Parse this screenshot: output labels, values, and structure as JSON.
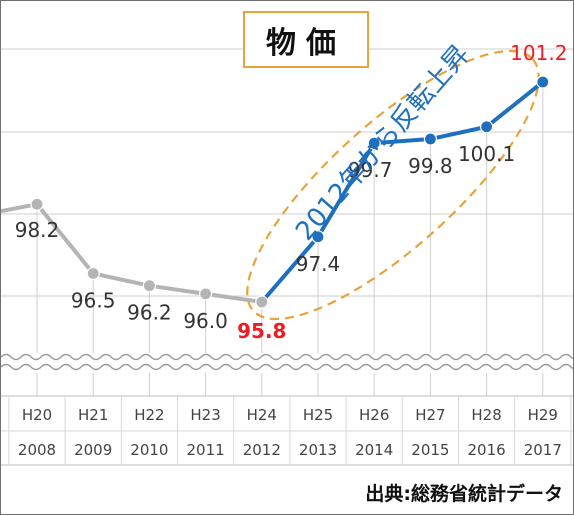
{
  "chart_data": {
    "type": "line",
    "title": "物価",
    "source": "出典:総務省統計データ",
    "annotation": "2012年から反転上昇",
    "categories": [
      {
        "era": "H20",
        "year": "2008"
      },
      {
        "era": "H21",
        "year": "2009"
      },
      {
        "era": "H22",
        "year": "2010"
      },
      {
        "era": "H23",
        "year": "2011"
      },
      {
        "era": "H24",
        "year": "2012"
      },
      {
        "era": "H25",
        "year": "2013"
      },
      {
        "era": "H26",
        "year": "2014"
      },
      {
        "era": "H27",
        "year": "2015"
      },
      {
        "era": "H28",
        "year": "2016"
      },
      {
        "era": "H29",
        "year": "2017"
      }
    ],
    "values": [
      98.2,
      96.5,
      96.2,
      96.0,
      95.8,
      97.4,
      99.7,
      99.8,
      100.1,
      101.2
    ],
    "data_labels": [
      "98.2",
      "96.5",
      "96.2",
      "96.0",
      "95.8",
      "97.4",
      "99.7",
      "99.8",
      "100.1",
      "101.2"
    ],
    "highlighted_labels": [
      4,
      9
    ],
    "series_segments": [
      {
        "from_index": 0,
        "to_index": 4,
        "color": "#b4b4b4"
      },
      {
        "from_index": 4,
        "to_index": 9,
        "color": "#1f6fbf"
      }
    ],
    "ylim": [
      95.0,
      102.0
    ],
    "y_axis_break": true,
    "grid": true,
    "colors": {
      "past_line": "#b4b4b4",
      "rising_line": "#1f6fbf",
      "highlight_label": "#ee1c24",
      "label": "#333333",
      "ellipse": "#e8a33c",
      "gridline": "#cfcfcf"
    }
  }
}
